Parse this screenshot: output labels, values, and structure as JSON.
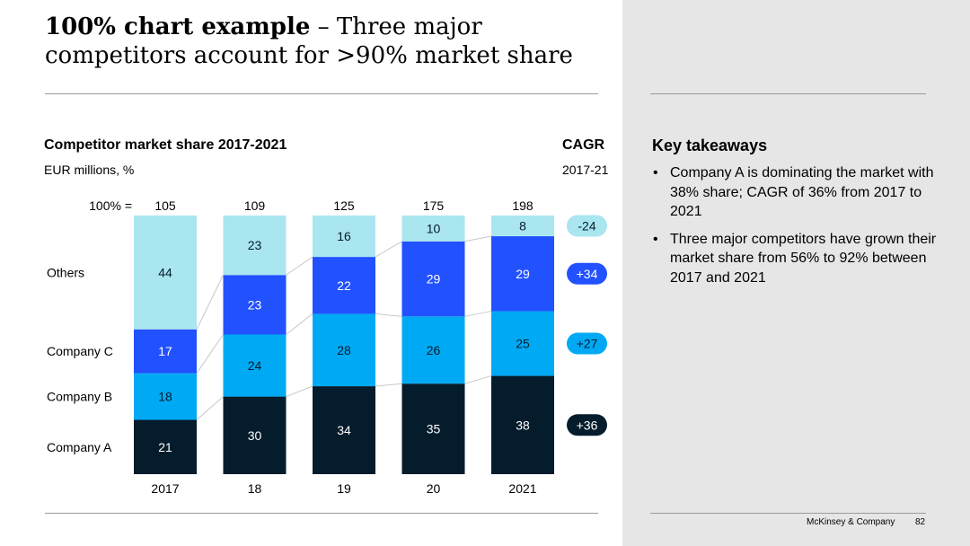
{
  "slide": {
    "title_bold": "100% chart example",
    "title_rest": " – Three major competitors account for >90% market share"
  },
  "chart_data": {
    "type": "bar",
    "stacked": true,
    "normalized": true,
    "title": "Competitor market share 2017-2021",
    "subtitle": "EUR millions, %",
    "categories": [
      "2017",
      "18",
      "19",
      "20",
      "2021"
    ],
    "totals_label": "100% =",
    "totals": [
      105,
      109,
      125,
      175,
      198
    ],
    "series": [
      {
        "name": "Company A",
        "values": [
          21,
          30,
          34,
          35,
          38
        ],
        "color": "#051c2c",
        "label_color": "#ffffff"
      },
      {
        "name": "Company B",
        "values": [
          18,
          24,
          28,
          26,
          25
        ],
        "color": "#00a9f4",
        "label_color": "#051c2c"
      },
      {
        "name": "Company C",
        "values": [
          17,
          23,
          22,
          29,
          29
        ],
        "color": "#2251ff",
        "label_color": "#ffffff"
      },
      {
        "name": "Others",
        "values": [
          44,
          23,
          16,
          10,
          8
        ],
        "color": "#aae6f0",
        "label_color": "#051c2c"
      }
    ],
    "cagr": {
      "title": "CAGR",
      "subtitle": "2017-21",
      "values": [
        "-24",
        "+34",
        "+27",
        "+36"
      ],
      "for_series": [
        "Others",
        "Company C",
        "Company B",
        "Company A"
      ]
    },
    "ylim": [
      0,
      100
    ],
    "legend": "left",
    "grid": false
  },
  "takeaways": {
    "title": "Key takeaways",
    "items": [
      "Company A is dominating the market with 38% share; CAGR of 36% from 2017 to 2021",
      "Three major competitors have grown their market share from 56% to 92% between 2017 and 2021"
    ]
  },
  "footer": {
    "brand": "McKinsey & Company",
    "page": "82"
  }
}
